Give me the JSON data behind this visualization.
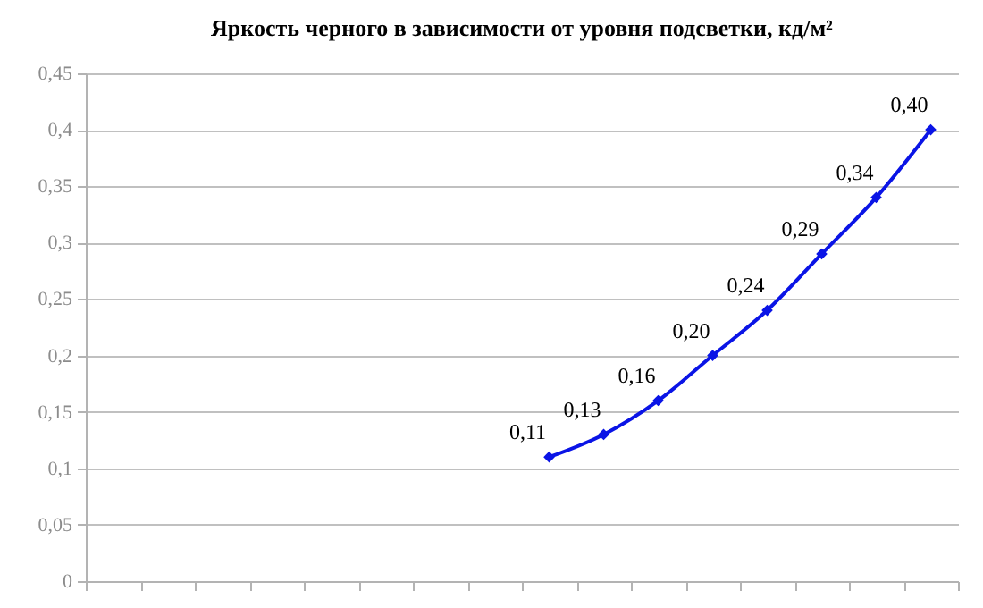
{
  "chart_data": {
    "type": "line",
    "title": "Яркость черного в зависимости от уровня подсветки, кд/м²",
    "categories": [
      null,
      null,
      null,
      null,
      null,
      null,
      null,
      null,
      null,
      null,
      null,
      null,
      null,
      null,
      null,
      null
    ],
    "values": [
      null,
      null,
      null,
      null,
      null,
      null,
      null,
      null,
      0.11,
      0.13,
      0.16,
      0.2,
      0.24,
      0.29,
      0.34,
      0.4
    ],
    "value_labels": [
      null,
      null,
      null,
      null,
      null,
      null,
      null,
      null,
      "0,11",
      "0,13",
      "0,16",
      "0,20",
      "0,24",
      "0,29",
      "0,34",
      "0,40"
    ],
    "color": "#0a14e6",
    "ylim": [
      0,
      0.45
    ],
    "yticks": [
      0,
      {
        "value": 0.05,
        "label": "0,05"
      },
      {
        "value": 0.1,
        "label": "0,1"
      },
      {
        "value": 0.15,
        "label": "0,15"
      },
      {
        "value": 0.2,
        "label": "0,2"
      },
      {
        "value": 0.25,
        "label": "0,25"
      },
      {
        "value": 0.3,
        "label": "0,3"
      },
      {
        "value": 0.35,
        "label": "0,35"
      },
      {
        "value": 0.4,
        "label": "0,4"
      },
      {
        "value": 0.45,
        "label": "0,45"
      }
    ],
    "grid": "y",
    "marker": "diamond",
    "tick_labels": "y"
  }
}
